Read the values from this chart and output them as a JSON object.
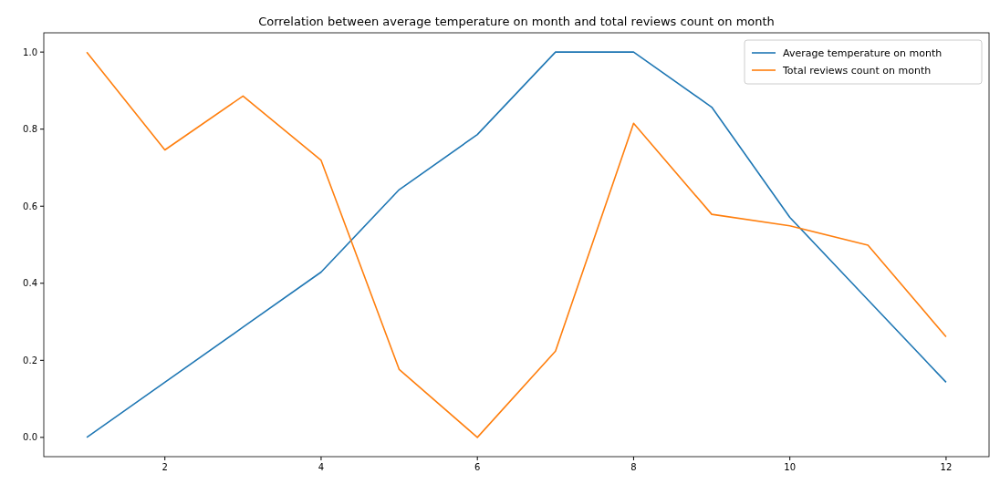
{
  "chart_data": {
    "type": "line",
    "title": "Correlation between average temperature on month and total reviews count on month",
    "x": [
      1,
      2,
      3,
      4,
      5,
      6,
      7,
      8,
      9,
      10,
      11,
      12
    ],
    "series": [
      {
        "name": "Average temperature on month",
        "color": "#1f77b4",
        "values": [
          0,
          0.143,
          0.286,
          0.429,
          0.643,
          0.786,
          1,
          1,
          0.857,
          0.571,
          0.357,
          0.143
        ]
      },
      {
        "name": "Total reviews count on month",
        "color": "#ff7f0e",
        "values": [
          1,
          0.746,
          0.886,
          0.719,
          0.176,
          0,
          0.224,
          0.815,
          0.579,
          0.549,
          0.499,
          0.261
        ]
      }
    ],
    "xlim": [
      0.45,
      12.55
    ],
    "xticks": [
      2,
      4,
      6,
      8,
      10,
      12
    ],
    "ylim": [
      -0.05,
      1.05
    ],
    "yticks": [
      {
        "value": 0,
        "label": "0.0"
      },
      {
        "value": 0.2,
        "label": "0.2"
      },
      {
        "value": 0.4,
        "label": "0.4"
      },
      {
        "value": 0.6,
        "label": "0.6"
      },
      {
        "value": 0.8,
        "label": "0.8"
      },
      {
        "value": 1,
        "label": "1.0"
      }
    ],
    "legend": "top right",
    "grid": false,
    "marker": "none",
    "line_style": "solid"
  }
}
